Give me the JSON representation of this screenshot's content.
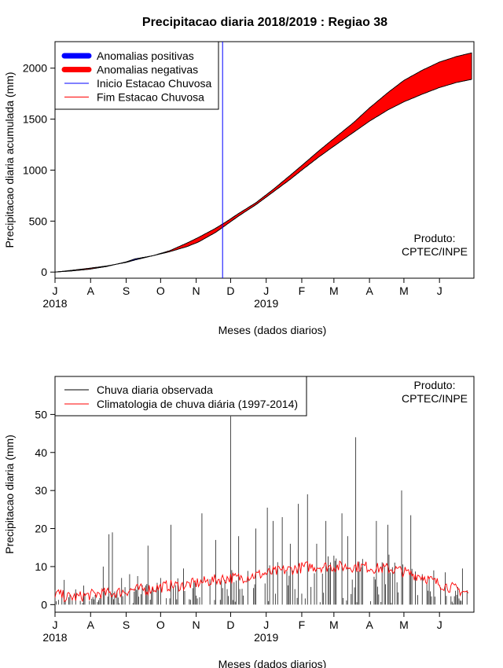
{
  "page_title": "Precipitacao diaria 2018/2019 : Regiao 38",
  "chart_data": [
    {
      "type": "area",
      "title": "Precipitacao diaria 2018/2019 : Regiao 38",
      "xlabel": "Meses (dados diarios)",
      "ylabel": "Precipitacao diaria acumulada (mm)",
      "xlim": [
        0,
        365
      ],
      "ylim": [
        -60,
        2260
      ],
      "yticks": [
        0,
        500,
        1000,
        1500,
        2000
      ],
      "month_ticks": [
        {
          "label": "J",
          "day": 0
        },
        {
          "label": "A",
          "day": 31
        },
        {
          "label": "S",
          "day": 62
        },
        {
          "label": "O",
          "day": 92
        },
        {
          "label": "N",
          "day": 123
        },
        {
          "label": "D",
          "day": 153
        },
        {
          "label": "J",
          "day": 184
        },
        {
          "label": "F",
          "day": 215
        },
        {
          "label": "M",
          "day": 243
        },
        {
          "label": "A",
          "day": 274
        },
        {
          "label": "M",
          "day": 304
        },
        {
          "label": "J",
          "day": 335
        }
      ],
      "year_labels": [
        {
          "label": "2018",
          "day": 0
        },
        {
          "label": "2019",
          "day": 184
        }
      ],
      "legend": {
        "position": "top-left",
        "entries": [
          {
            "label": "Anomalias positivas",
            "color": "#0000ff",
            "style": "thick"
          },
          {
            "label": "Anomalias negativas",
            "color": "#ff0000",
            "style": "thick"
          },
          {
            "label": "Inicio Estacao Chuvosa",
            "color": "#0000ff",
            "style": "thin"
          },
          {
            "label": "Fim Estacao Chuvosa",
            "color": "#ff0000",
            "style": "thin"
          }
        ]
      },
      "annotation": [
        "Produto:",
        "CPTEC/INPE"
      ],
      "rainy_season_start_day": 146,
      "series": [
        {
          "name": "Climatologia acumulada",
          "x": [
            0,
            15,
            30,
            45,
            62,
            70,
            85,
            100,
            115,
            125,
            140,
            150,
            160,
            175,
            190,
            205,
            215,
            230,
            243,
            260,
            274,
            290,
            304,
            320,
            335,
            350,
            363
          ],
          "values": [
            0,
            18,
            38,
            60,
            95,
            120,
            160,
            210,
            285,
            340,
            430,
            500,
            575,
            680,
            810,
            950,
            1045,
            1190,
            1310,
            1465,
            1610,
            1760,
            1880,
            1980,
            2060,
            2115,
            2150
          ]
        },
        {
          "name": "Observado acumulado",
          "x": [
            0,
            15,
            30,
            45,
            62,
            70,
            85,
            100,
            115,
            125,
            140,
            150,
            160,
            175,
            190,
            205,
            215,
            230,
            243,
            260,
            274,
            290,
            304,
            320,
            335,
            350,
            363
          ],
          "values": [
            0,
            12,
            28,
            55,
            100,
            130,
            160,
            200,
            250,
            295,
            390,
            470,
            550,
            660,
            785,
            910,
            1000,
            1130,
            1235,
            1370,
            1480,
            1590,
            1670,
            1745,
            1810,
            1860,
            1890
          ]
        }
      ]
    },
    {
      "type": "bar",
      "xlabel": "Meses (dados diarios)",
      "ylabel": "Precipitacao diaria (mm)",
      "xlim": [
        0,
        365
      ],
      "ylim": [
        -2,
        60
      ],
      "yticks": [
        0,
        10,
        20,
        30,
        40,
        50
      ],
      "month_ticks": [
        {
          "label": "J",
          "day": 0
        },
        {
          "label": "A",
          "day": 31
        },
        {
          "label": "S",
          "day": 62
        },
        {
          "label": "O",
          "day": 92
        },
        {
          "label": "N",
          "day": 123
        },
        {
          "label": "D",
          "day": 153
        },
        {
          "label": "J",
          "day": 184
        },
        {
          "label": "F",
          "day": 215
        },
        {
          "label": "M",
          "day": 243
        },
        {
          "label": "A",
          "day": 274
        },
        {
          "label": "M",
          "day": 304
        },
        {
          "label": "J",
          "day": 335
        }
      ],
      "year_labels": [
        {
          "label": "2018",
          "day": 0
        },
        {
          "label": "2019",
          "day": 184
        }
      ],
      "legend": {
        "position": "top-left",
        "entries": [
          {
            "label": "Chuva diaria observada",
            "color": "#000000"
          },
          {
            "label": "Climatologia de chuva diária (1997-2014)",
            "color": "#ff0000"
          }
        ]
      },
      "annotation": [
        "Produto:",
        "CPTEC/INPE"
      ],
      "observed_peaks": {
        "x": [
          8,
          18,
          25,
          33,
          42,
          47,
          50,
          58,
          65,
          72,
          81,
          92,
          101,
          112,
          128,
          140,
          153,
          160,
          175,
          185,
          190,
          198,
          205,
          212,
          220,
          228,
          236,
          250,
          255,
          262,
          268,
          280,
          290,
          302,
          310,
          320,
          330,
          340,
          355
        ],
        "values": [
          6.5,
          4,
          5,
          2,
          10,
          18.5,
          19,
          7,
          8,
          7.5,
          15.5,
          7,
          21,
          9.5,
          24,
          17,
          49.5,
          18,
          20,
          25.5,
          22,
          23,
          16,
          26.5,
          29,
          16,
          22,
          24,
          18,
          44,
          12,
          22,
          21,
          30,
          23.5,
          8,
          9,
          8.5,
          9.5
        ]
      },
      "climatology": {
        "x": [
          0,
          10,
          20,
          30,
          40,
          50,
          60,
          70,
          80,
          90,
          100,
          110,
          120,
          130,
          140,
          150,
          160,
          170,
          180,
          190,
          200,
          210,
          220,
          230,
          240,
          250,
          260,
          270,
          280,
          290,
          300,
          310,
          320,
          330,
          340,
          350,
          360
        ],
        "values": [
          3,
          2,
          2,
          2.5,
          3,
          3,
          3.5,
          4,
          4,
          4.5,
          5,
          5,
          5.5,
          6,
          6.5,
          7,
          7,
          7.5,
          8,
          8.5,
          9,
          9.5,
          10,
          10,
          10,
          10,
          10,
          10,
          9.5,
          9.5,
          9,
          8,
          7.5,
          6,
          5,
          4,
          3
        ]
      }
    }
  ]
}
